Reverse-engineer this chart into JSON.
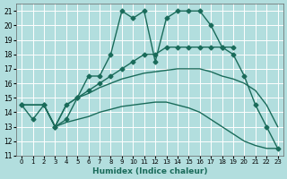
{
  "xlabel": "Humidex (Indice chaleur)",
  "bg_color": "#b2dede",
  "grid_color": "#ffffff",
  "line_color": "#1a6b5a",
  "xlim": [
    -0.5,
    23.5
  ],
  "ylim": [
    11,
    21.5
  ],
  "yticks": [
    11,
    12,
    13,
    14,
    15,
    16,
    17,
    18,
    19,
    20,
    21
  ],
  "xticks": [
    0,
    1,
    2,
    3,
    4,
    5,
    6,
    7,
    8,
    9,
    10,
    11,
    12,
    13,
    14,
    15,
    16,
    17,
    18,
    19,
    20,
    21,
    22,
    23
  ],
  "series": [
    {
      "x": [
        0,
        1,
        2,
        3,
        4,
        5,
        6,
        7,
        8,
        9,
        10,
        11,
        12,
        13,
        14,
        15,
        16,
        17,
        18,
        19
      ],
      "y": [
        14.5,
        13.5,
        14.5,
        13.0,
        13.5,
        15.0,
        16.5,
        16.5,
        18.0,
        21.0,
        20.5,
        21.0,
        17.5,
        20.5,
        21.0,
        21.0,
        21.0,
        20.0,
        18.5,
        18.5
      ],
      "marker": "D",
      "markersize": 2.5,
      "linestyle": "-",
      "linewidth": 1.0
    },
    {
      "x": [
        0,
        2,
        3,
        4,
        5,
        6,
        7,
        8,
        9,
        10,
        11,
        12,
        13,
        14,
        15,
        16,
        17,
        18,
        19,
        20,
        21,
        22,
        23
      ],
      "y": [
        14.5,
        14.5,
        13.0,
        14.5,
        15.0,
        15.5,
        16.0,
        16.5,
        17.0,
        17.5,
        18.0,
        18.0,
        18.5,
        18.5,
        18.5,
        18.5,
        18.5,
        18.5,
        18.0,
        16.5,
        14.5,
        13.0,
        11.5
      ],
      "marker": "D",
      "markersize": 2.5,
      "linestyle": "-",
      "linewidth": 1.0
    },
    {
      "x": [
        0,
        2,
        3,
        4,
        5,
        6,
        7,
        8,
        9,
        10,
        11,
        12,
        13,
        14,
        15,
        16,
        17,
        18,
        19,
        20,
        21,
        22,
        23
      ],
      "y": [
        14.5,
        14.5,
        13.0,
        14.5,
        15.0,
        15.3,
        15.7,
        16.0,
        16.3,
        16.5,
        16.7,
        16.8,
        16.9,
        17.0,
        17.0,
        17.0,
        16.8,
        16.5,
        16.3,
        16.0,
        15.5,
        14.5,
        13.0
      ],
      "marker": null,
      "markersize": 0,
      "linestyle": "-",
      "linewidth": 1.0
    },
    {
      "x": [
        0,
        2,
        3,
        4,
        5,
        6,
        7,
        8,
        9,
        10,
        11,
        12,
        13,
        14,
        15,
        16,
        17,
        18,
        19,
        20,
        21,
        22,
        23
      ],
      "y": [
        14.5,
        14.5,
        13.0,
        13.3,
        13.5,
        13.7,
        14.0,
        14.2,
        14.4,
        14.5,
        14.6,
        14.7,
        14.7,
        14.5,
        14.3,
        14.0,
        13.5,
        13.0,
        12.5,
        12.0,
        11.7,
        11.5,
        11.5
      ],
      "marker": null,
      "markersize": 0,
      "linestyle": "-",
      "linewidth": 1.0
    }
  ]
}
